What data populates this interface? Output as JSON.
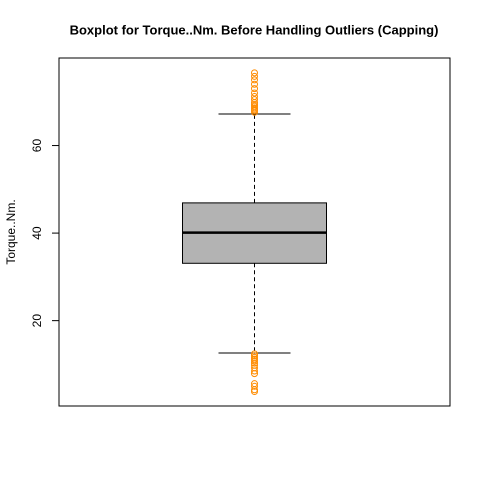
{
  "chart_data": {
    "type": "boxplot",
    "title": "Boxplot for Torque..Nm. Before Handling Outliers (Capping)",
    "y_label": "Torque..Nm.",
    "ylim": [
      0.5,
      80
    ],
    "yticks": [
      20,
      40,
      60
    ],
    "box_color": "#b3b3b3",
    "outlier_color": "#ff8c00",
    "boxes": [
      {
        "whisker_low": 12.6,
        "q1": 33.1,
        "median": 40.1,
        "q3": 46.9,
        "whisker_high": 67.2,
        "outliers": [
          67.6,
          68.0,
          68.3,
          68.6,
          69.0,
          69.4,
          69.8,
          70.5,
          71.2,
          72.0,
          73.0,
          74.0,
          75.0,
          75.8,
          76.6,
          12.4,
          12.0,
          11.6,
          11.2,
          10.8,
          10.3,
          9.8,
          9.2,
          8.5,
          7.9,
          5.6,
          5.0,
          4.2,
          3.8
        ]
      }
    ]
  }
}
